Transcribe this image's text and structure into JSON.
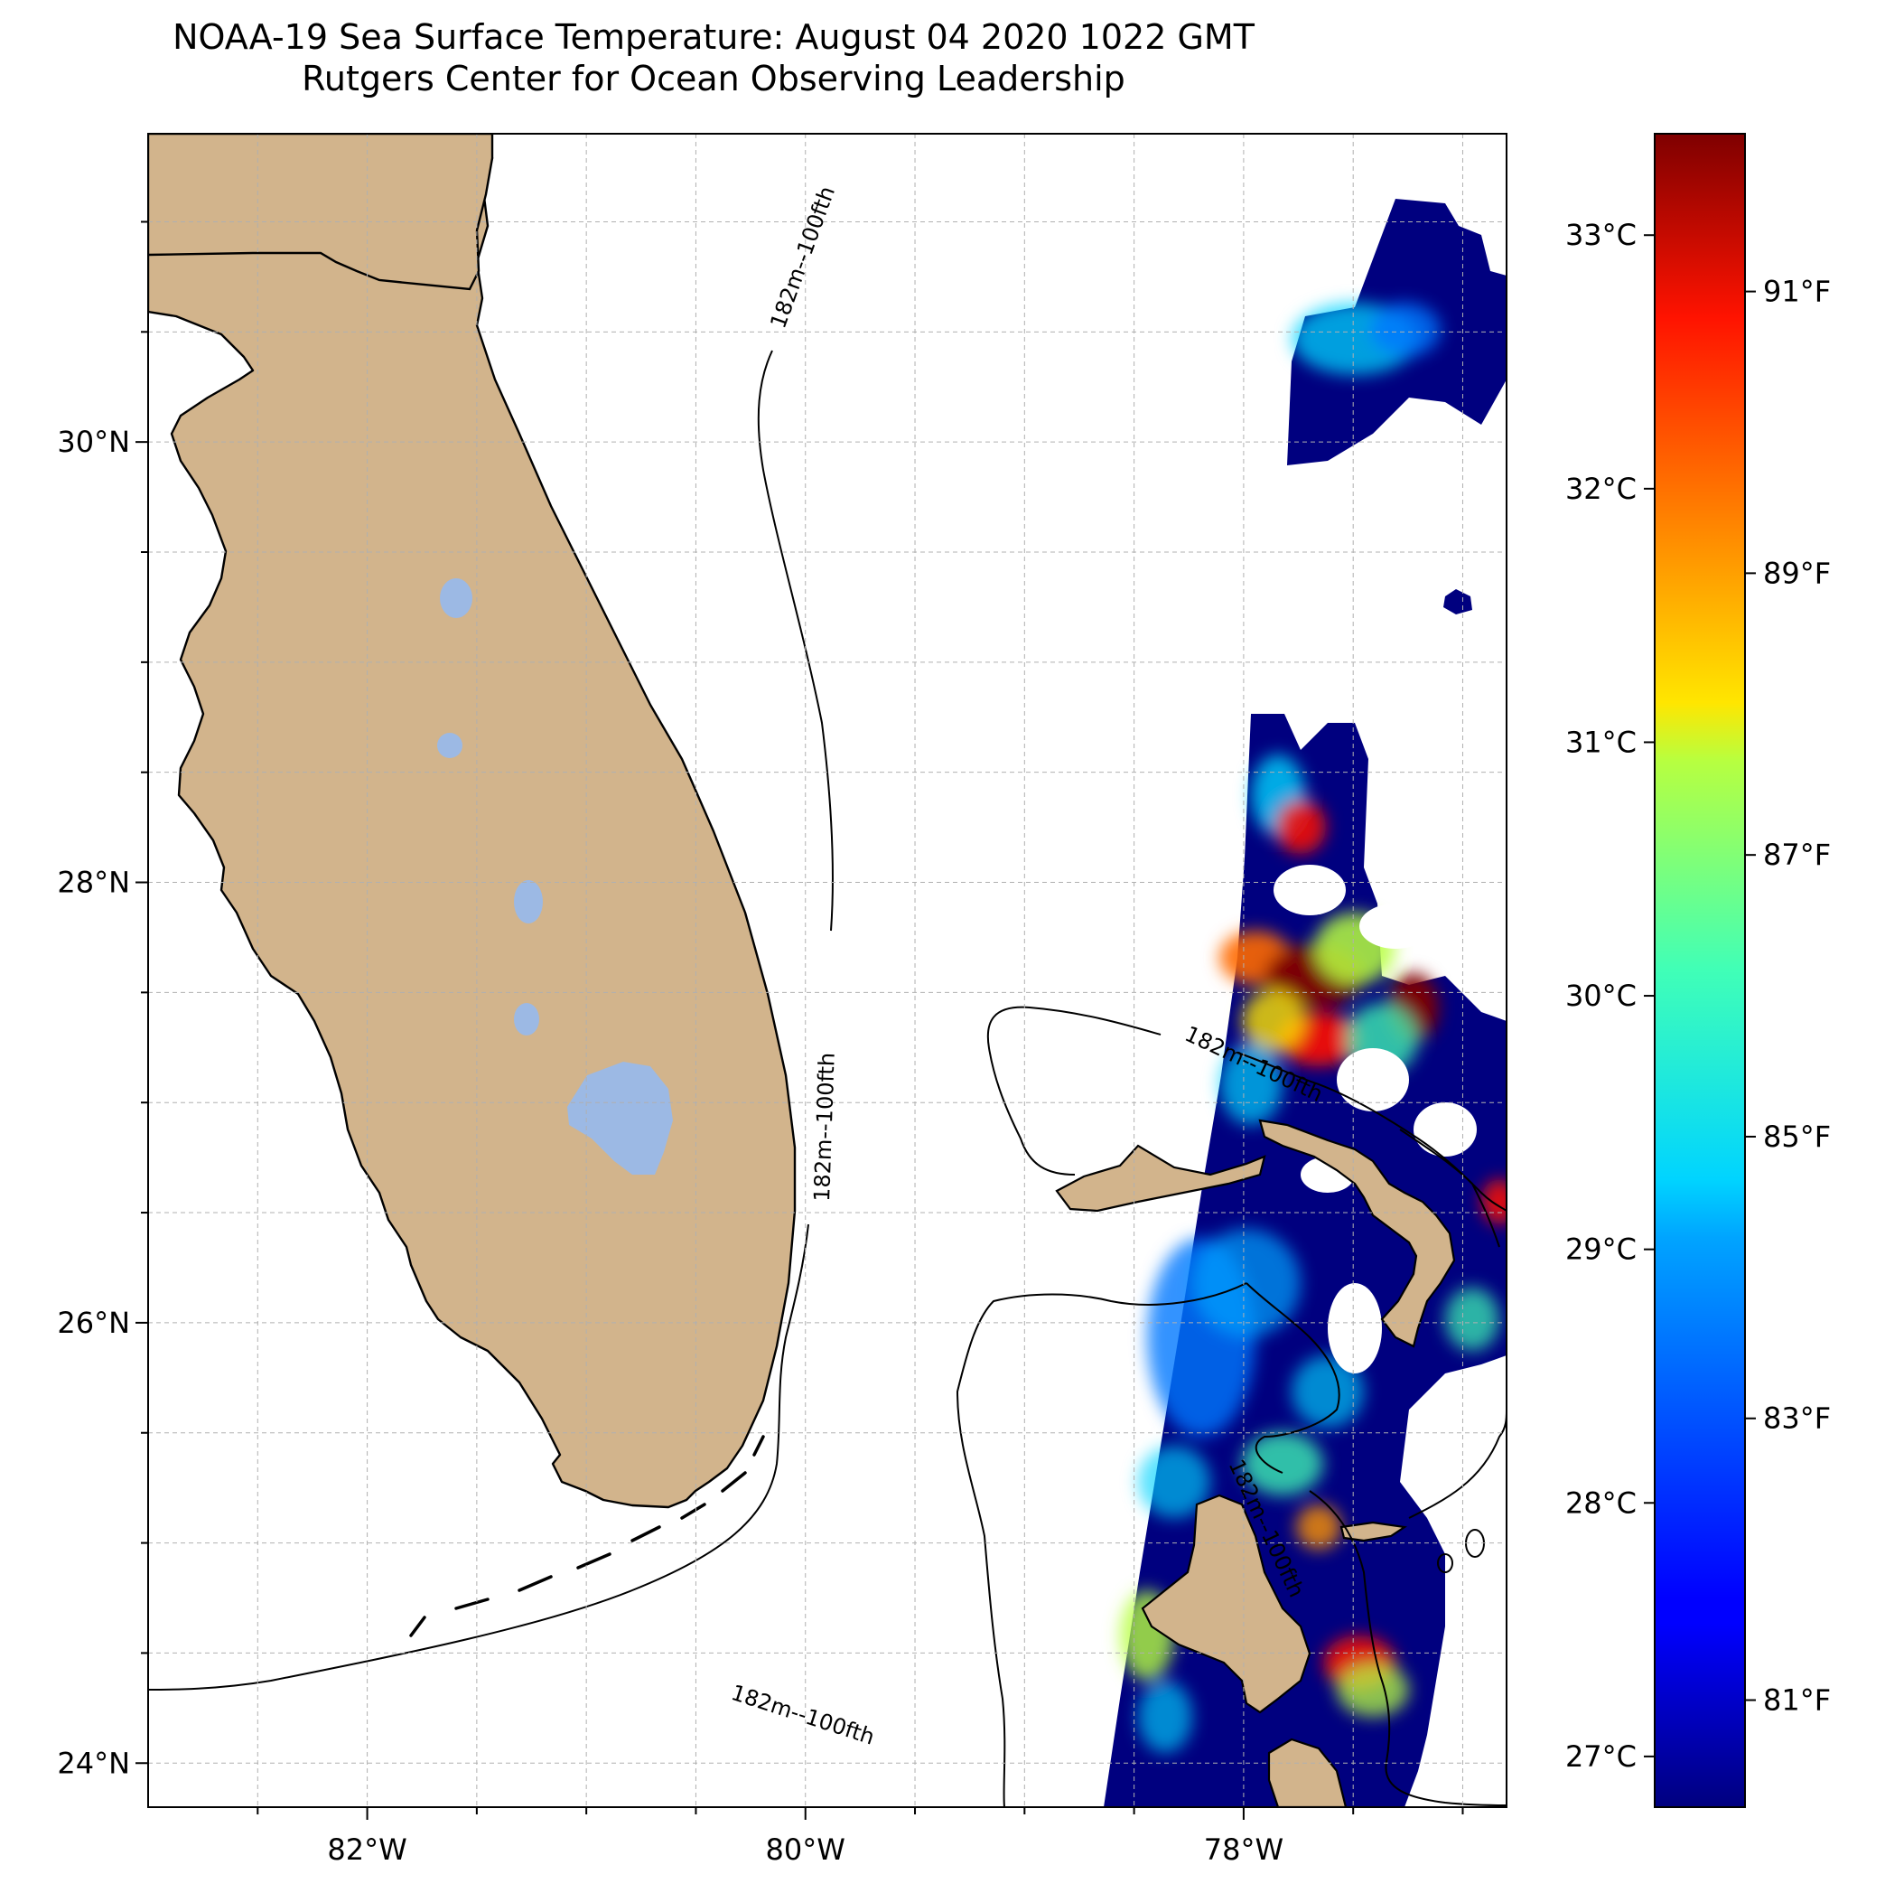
{
  "title": {
    "line1": "NOAA-19 Sea Surface Temperature: August 04 2020 1022 GMT",
    "line2": "Rutgers Center for Ocean Observing Leadership"
  },
  "map": {
    "lon_range": [
      -83.0,
      -76.8
    ],
    "lat_range": [
      23.8,
      31.4
    ],
    "grid": true,
    "lon_ticks": [
      {
        "value": -82,
        "label": "82°W"
      },
      {
        "value": -80,
        "label": "80°W"
      },
      {
        "value": -78,
        "label": "78°W"
      }
    ],
    "lat_ticks": [
      {
        "value": 24,
        "label": "24°N"
      },
      {
        "value": 26,
        "label": "26°N"
      },
      {
        "value": 28,
        "label": "28°N"
      },
      {
        "value": 30,
        "label": "30°N"
      }
    ],
    "contour_labels": [
      "182m--100fth",
      "182m--100fth",
      "182m--100fth",
      "182m--100fth",
      "182m--100fth"
    ],
    "colors": {
      "land": "#d2b48c",
      "lakes": "#9cb9e4",
      "coastline": "#000000",
      "grid": "#b0b0b0"
    }
  },
  "colorbar": {
    "colormap": "jet",
    "celsius_range": [
      26.8,
      33.4
    ],
    "celsius_ticks": [
      {
        "value": 27,
        "label": "27°C"
      },
      {
        "value": 28,
        "label": "28°C"
      },
      {
        "value": 29,
        "label": "29°C"
      },
      {
        "value": 30,
        "label": "30°C"
      },
      {
        "value": 31,
        "label": "31°C"
      },
      {
        "value": 32,
        "label": "32°C"
      },
      {
        "value": 33,
        "label": "33°C"
      }
    ],
    "fahrenheit_ticks": [
      {
        "value": 81,
        "label": "81°F"
      },
      {
        "value": 83,
        "label": "83°F"
      },
      {
        "value": 85,
        "label": "85°F"
      },
      {
        "value": 87,
        "label": "87°F"
      },
      {
        "value": 89,
        "label": "89°F"
      },
      {
        "value": 91,
        "label": "91°F"
      }
    ]
  }
}
